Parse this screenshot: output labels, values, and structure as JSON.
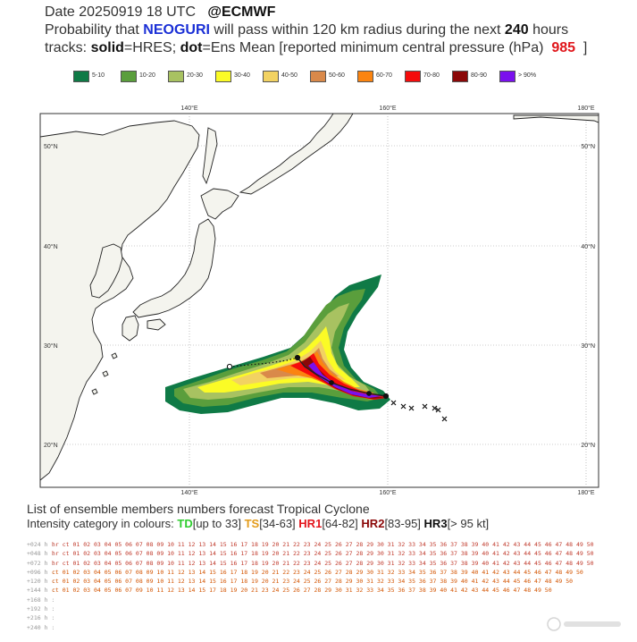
{
  "header": {
    "line1_date": "Date 20250919 18 UTC",
    "line1_source": "@ECMWF",
    "line2_a": "Probability that",
    "storm_name": "NEOGURI",
    "line2_b": "will pass within 120 km radius during the next",
    "hours": "240",
    "line2_c": "hours",
    "line3_a": "tracks:",
    "solid_word": "solid",
    "line3_b": "=HRES;",
    "dot_word": "dot",
    "line3_c": "=Ens Mean [reported minimum central pressure (hPa)",
    "pressure": "985",
    "line3_end": "]"
  },
  "legend": [
    {
      "label": "5-10",
      "color": "#0f7a46"
    },
    {
      "label": "10-20",
      "color": "#5a9e3c"
    },
    {
      "label": "20-30",
      "color": "#a8c261"
    },
    {
      "label": "30-40",
      "color": "#fbfb26"
    },
    {
      "label": "40-50",
      "color": "#f2d262"
    },
    {
      "label": "50-60",
      "color": "#d9894a"
    },
    {
      "label": "60-70",
      "color": "#fb8410"
    },
    {
      "label": "70-80",
      "color": "#f50c0c"
    },
    {
      "label": "80-90",
      "color": "#8b0808"
    },
    {
      "label": "> 90%",
      "color": "#7a10ee"
    }
  ],
  "map": {
    "lon_labels": [
      "140°E",
      "160°E",
      "180°E"
    ],
    "lat_labels": [
      "50°N",
      "40°N",
      "30°N",
      "20°N"
    ],
    "lon_ticks": [
      140,
      160,
      180
    ],
    "lat_ticks": [
      50,
      40,
      30,
      20
    ],
    "hres_track_color": "#7a10ee",
    "ens_track_color": "#111111"
  },
  "bottom": {
    "title": "List of ensemble members numbers forecast Tropical Cyclone",
    "intensity_prefix": "Intensity category in colours:",
    "td": "TD",
    "td_range": "[up to 33]",
    "ts": "TS",
    "ts_range": "[34-63]",
    "hr1": "HR1",
    "hr1_range": "[64-82]",
    "hr2": "HR2",
    "hr2_range": "[83-95]",
    "hr3": "HR3",
    "hr3_range": "[> 95 kt]"
  },
  "members_table": [
    {
      "lead": "+024 h :",
      "text": "hr ct 01 02 03 04 05 06 07 08 09 10 11 12 13 14 15 16 17 18 19 20 21 22 23 24 25 26 27 28 29 30 31 32 33 34 35 36 37 38 39 40 41 42 43 44 45 46 47 48 49 50"
    },
    {
      "lead": "+048 h :",
      "text": "hr ct 01 02 03 04 05 06 07 08 09 10 11 12 13 14 15 16 17 18 19 20 21 22 23 24 25 26 27 28 29 30 31 32 33 34 35 36 37 38 39 40 41 42 43 44 45 46 47 48 49 50"
    },
    {
      "lead": "+072 h :",
      "text": "hr ct 01 02 03 04 05 06 07 08 09 10 11 12 13 14 15 16 17 18 19 20 21 22 23 24 25 26 27 28 29 30 31 32 33 34 35 36 37 38 39 40 41 42 43 44 45 46 47 48 49 50"
    },
    {
      "lead": "+096 h :",
      "text": "ct 01 02 03 04 05 06 07 08 09 10 11 12 13 14 15 16 17 18 19 20 21 22 23 24 25 26 27 28 29 30 31 32 33 34 35 36 37 38 39 40 41 42 43 44 45 46 47 48 49 50"
    },
    {
      "lead": "+120 h :",
      "text": "ct 01 02 03 04 05 06 07 08 09 10 11 12 13 14 15 16 17 18 19 20 21 23 24 25 26 27 28 29 30 31 32 33 34 35 36 37 38 39 40 41 42 43 44 45 46 47 48 49 50"
    },
    {
      "lead": "+144 h :",
      "text": "ct 01 02 03 04 05 06 07 09 10 11 12 13 14 15 17 18 19 20 21 23 24 25 26 27 28 29 30 31 32 33 34 35 36 37 38 39 40 41 42 43 44 45 46 47 48 49 50"
    },
    {
      "lead": "+168 h :",
      "text": ""
    },
    {
      "lead": "+192 h :",
      "text": ""
    },
    {
      "lead": "+216 h :",
      "text": ""
    },
    {
      "lead": "+240 h :",
      "text": ""
    }
  ]
}
